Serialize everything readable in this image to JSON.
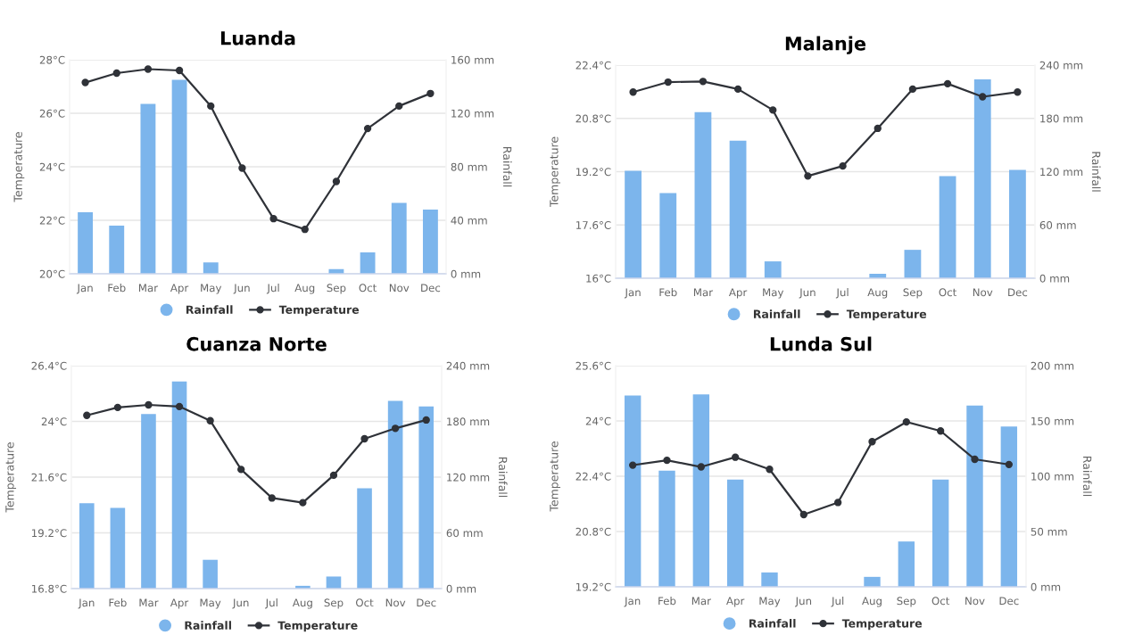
{
  "chart_data": [
    {
      "type": "bar",
      "title": "Luanda",
      "ylabel": "Temperature",
      "y2label": "Rainfall",
      "categories": [
        "Jan",
        "Feb",
        "Mar",
        "Apr",
        "May",
        "Jun",
        "Jul",
        "Aug",
        "Sep",
        "Oct",
        "Nov",
        "Dec"
      ],
      "series": [
        {
          "name": "Rainfall",
          "axis": "y2",
          "color": "#7cb5ec",
          "values": [
            46,
            36,
            127,
            145,
            8.5,
            0,
            0,
            0,
            3.5,
            16,
            53,
            48
          ]
        },
        {
          "name": "Temperature",
          "type": "line",
          "axis": "y",
          "color": "#2f3238",
          "values": [
            27.15,
            27.5,
            27.65,
            27.6,
            26.27,
            23.95,
            22.06,
            21.66,
            23.45,
            25.43,
            26.27,
            26.74
          ]
        }
      ],
      "ylim": [
        20,
        28
      ],
      "yticks": [
        {
          "value": 20,
          "label": "20°C"
        },
        {
          "value": 22,
          "label": "22°C"
        },
        {
          "value": 24,
          "label": "24°C"
        },
        {
          "value": 26,
          "label": "26°C"
        },
        {
          "value": 28,
          "label": "28°C"
        }
      ],
      "y2lim": [
        0,
        160
      ],
      "y2ticks": [
        {
          "value": 0,
          "label": "0 mm"
        },
        {
          "value": 40,
          "label": "40 mm"
        },
        {
          "value": 80,
          "label": "80 mm"
        },
        {
          "value": 120,
          "label": "120 mm"
        },
        {
          "value": 160,
          "label": "160 mm"
        }
      ],
      "grid": "y",
      "legend": "bottom",
      "marker": "circle",
      "line_style": "solid"
    },
    {
      "type": "bar",
      "title": "Malanje",
      "ylabel": "Temperature",
      "y2label": "Rainfall",
      "categories": [
        "Jan",
        "Feb",
        "Mar",
        "Apr",
        "May",
        "Jun",
        "Jul",
        "Aug",
        "Sep",
        "Oct",
        "Nov",
        "Dec"
      ],
      "series": [
        {
          "name": "Rainfall",
          "axis": "y2",
          "color": "#7cb5ec",
          "values": [
            121,
            96,
            187,
            155,
            19,
            0,
            0,
            5,
            32,
            115,
            224,
            122
          ]
        },
        {
          "name": "Temperature",
          "type": "line",
          "axis": "y",
          "color": "#2f3238",
          "values": [
            21.59,
            21.89,
            21.91,
            21.68,
            21.05,
            19.07,
            19.37,
            20.5,
            21.68,
            21.84,
            21.45,
            21.59
          ]
        }
      ],
      "ylim": [
        16,
        22.4
      ],
      "yticks": [
        {
          "value": 16,
          "label": "16°C"
        },
        {
          "value": 17.6,
          "label": "17.6°C"
        },
        {
          "value": 19.2,
          "label": "19.2°C"
        },
        {
          "value": 20.8,
          "label": "20.8°C"
        },
        {
          "value": 22.4,
          "label": "22.4°C"
        }
      ],
      "y2lim": [
        0,
        240
      ],
      "y2ticks": [
        {
          "value": 0,
          "label": "0 mm"
        },
        {
          "value": 60,
          "label": "60 mm"
        },
        {
          "value": 120,
          "label": "120 mm"
        },
        {
          "value": 180,
          "label": "180 mm"
        },
        {
          "value": 240,
          "label": "240 mm"
        }
      ],
      "grid": "y",
      "legend": "bottom",
      "marker": "circle",
      "line_style": "solid"
    },
    {
      "type": "bar",
      "title": "Cuanza Norte",
      "ylabel": "Temperature",
      "y2label": "Rainfall",
      "categories": [
        "Jan",
        "Feb",
        "Mar",
        "Apr",
        "May",
        "Jun",
        "Jul",
        "Aug",
        "Sep",
        "Oct",
        "Nov",
        "Dec"
      ],
      "series": [
        {
          "name": "Rainfall",
          "axis": "y2",
          "color": "#7cb5ec",
          "values": [
            92,
            87,
            188,
            223,
            31,
            0,
            0,
            3,
            13,
            108,
            202,
            196
          ]
        },
        {
          "name": "Temperature",
          "type": "line",
          "axis": "y",
          "color": "#2f3238",
          "values": [
            24.26,
            24.6,
            24.71,
            24.64,
            24.03,
            21.93,
            20.7,
            20.5,
            21.68,
            23.25,
            23.7,
            24.06
          ]
        }
      ],
      "ylim": [
        16.8,
        26.4
      ],
      "yticks": [
        {
          "value": 16.8,
          "label": "16.8°C"
        },
        {
          "value": 19.2,
          "label": "19.2°C"
        },
        {
          "value": 21.6,
          "label": "21.6°C"
        },
        {
          "value": 24,
          "label": "24°C"
        },
        {
          "value": 26.4,
          "label": "26.4°C"
        }
      ],
      "y2lim": [
        0,
        240
      ],
      "y2ticks": [
        {
          "value": 0,
          "label": "0 mm"
        },
        {
          "value": 60,
          "label": "60 mm"
        },
        {
          "value": 120,
          "label": "120 mm"
        },
        {
          "value": 180,
          "label": "180 mm"
        },
        {
          "value": 240,
          "label": "240 mm"
        }
      ],
      "grid": "y",
      "legend": "bottom",
      "marker": "circle",
      "line_style": "solid"
    },
    {
      "type": "bar",
      "title": "Lunda Sul",
      "ylabel": "Temperature",
      "y2label": "Rainfall",
      "categories": [
        "Jan",
        "Feb",
        "Mar",
        "Apr",
        "May",
        "Jun",
        "Jul",
        "Aug",
        "Sep",
        "Oct",
        "Nov",
        "Dec"
      ],
      "series": [
        {
          "name": "Rainfall",
          "axis": "y2",
          "color": "#7cb5ec",
          "values": [
            173,
            105,
            174,
            97,
            13,
            0,
            0,
            9,
            41,
            97,
            164,
            145
          ]
        },
        {
          "name": "Temperature",
          "type": "line",
          "axis": "y",
          "color": "#2f3238",
          "values": [
            22.72,
            22.86,
            22.67,
            22.95,
            22.6,
            21.29,
            21.64,
            23.4,
            23.97,
            23.71,
            22.89,
            22.74
          ]
        }
      ],
      "ylim": [
        19.2,
        25.6
      ],
      "yticks": [
        {
          "value": 19.2,
          "label": "19.2°C"
        },
        {
          "value": 20.8,
          "label": "20.8°C"
        },
        {
          "value": 22.4,
          "label": "22.4°C"
        },
        {
          "value": 24,
          "label": "24°C"
        },
        {
          "value": 25.6,
          "label": "25.6°C"
        }
      ],
      "y2lim": [
        0,
        200
      ],
      "y2ticks": [
        {
          "value": 0,
          "label": "0 mm"
        },
        {
          "value": 50,
          "label": "50 mm"
        },
        {
          "value": 100,
          "label": "100 mm"
        },
        {
          "value": 150,
          "label": "150 mm"
        },
        {
          "value": 200,
          "label": "200 mm"
        }
      ],
      "grid": "y",
      "legend": "bottom",
      "marker": "circle",
      "line_style": "solid"
    }
  ]
}
